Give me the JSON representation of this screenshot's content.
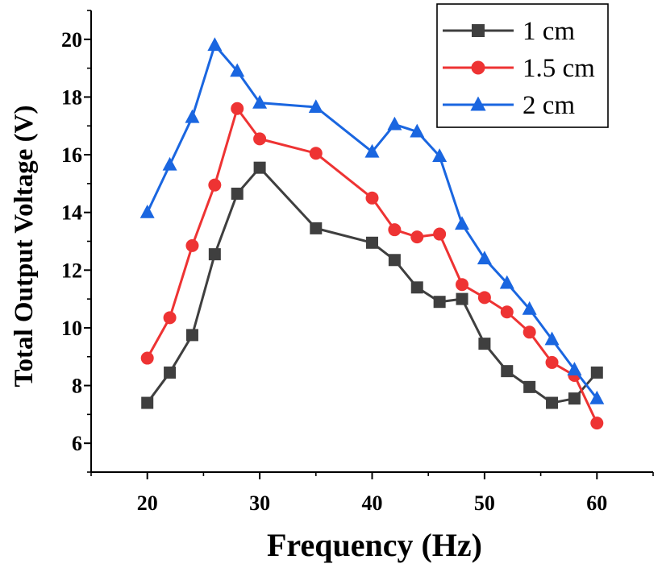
{
  "chart_data": {
    "type": "line",
    "xlabel": "Frequency (Hz)",
    "ylabel": "Total Output Voltage (V)",
    "xlim": [
      15,
      65
    ],
    "ylim": [
      5,
      21
    ],
    "xticks": [
      20,
      30,
      40,
      50,
      60
    ],
    "yticks": [
      6,
      8,
      10,
      12,
      14,
      16,
      18,
      20
    ],
    "x": [
      20,
      22,
      24,
      26,
      28,
      30,
      35,
      40,
      42,
      44,
      46,
      48,
      50,
      52,
      54,
      56,
      58,
      60
    ],
    "grid": false,
    "legend_position": "top-right",
    "series": [
      {
        "name": "1 cm",
        "color": "#3f3f3f",
        "marker": "square",
        "values": [
          7.4,
          8.45,
          9.75,
          12.55,
          14.65,
          15.55,
          13.45,
          12.95,
          12.35,
          11.4,
          10.9,
          11.0,
          9.45,
          8.5,
          7.95,
          7.4,
          7.55,
          8.45
        ]
      },
      {
        "name": "1.5 cm",
        "color": "#ee3333",
        "marker": "circle",
        "values": [
          8.95,
          10.35,
          12.85,
          14.95,
          17.6,
          16.55,
          16.05,
          14.5,
          13.4,
          13.15,
          13.25,
          11.5,
          11.05,
          10.55,
          9.85,
          8.8,
          8.35,
          6.7
        ]
      },
      {
        "name": "2 cm",
        "color": "#1a66e0",
        "marker": "triangle",
        "values": [
          14.0,
          15.65,
          17.3,
          19.8,
          18.9,
          17.8,
          17.65,
          16.1,
          17.05,
          16.8,
          15.95,
          13.6,
          12.4,
          11.55,
          10.65,
          9.6,
          8.55,
          7.55
        ]
      }
    ]
  }
}
